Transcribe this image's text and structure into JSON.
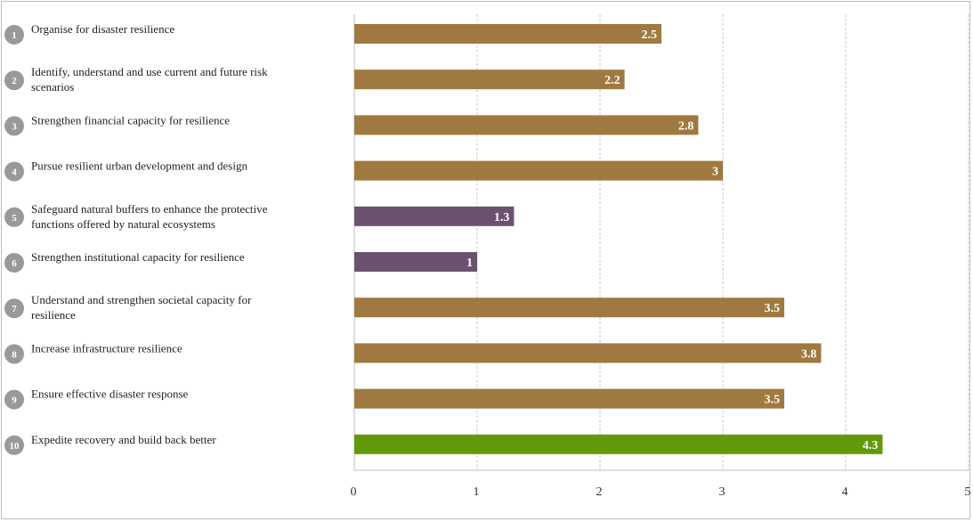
{
  "chart_data": {
    "type": "bar",
    "orientation": "horizontal",
    "categories": [
      {
        "number": "1",
        "label": "Organise for disaster resilience"
      },
      {
        "number": "2",
        "label": "Identify, understand and use current and future risk scenarios"
      },
      {
        "number": "3",
        "label": "Strengthen financial capacity for resilience"
      },
      {
        "number": "4",
        "label": "Pursue resilient urban development and design"
      },
      {
        "number": "5",
        "label": "Safeguard natural buffers to enhance the protective functions offered by natural ecosystems"
      },
      {
        "number": "6",
        "label": "Strengthen institutional capacity for resilience"
      },
      {
        "number": "7",
        "label": "Understand and strengthen societal capacity for resilience"
      },
      {
        "number": "8",
        "label": "Increase infrastructure resilience"
      },
      {
        "number": "9",
        "label": "Ensure effective disaster response"
      },
      {
        "number": "10",
        "label": "Expedite recovery and build back better"
      }
    ],
    "values": [
      2.5,
      2.2,
      2.8,
      3,
      1.3,
      1,
      3.5,
      3.8,
      3.5,
      4.3
    ],
    "value_labels": [
      "2.5",
      "2.2",
      "2.8",
      "3",
      "1.3",
      "1",
      "3.5",
      "3.8",
      "3.5",
      "4.3"
    ],
    "bar_colors": [
      "#a07940",
      "#a07940",
      "#a07940",
      "#a07940",
      "#6b5370",
      "#6b5370",
      "#a07940",
      "#a07940",
      "#a07940",
      "#62990a"
    ],
    "xlim": [
      0,
      5
    ],
    "xticks": [
      "0",
      "1",
      "2",
      "3",
      "4",
      "5"
    ],
    "grid": "vertical dashed",
    "title": "",
    "xlabel": "",
    "ylabel": ""
  },
  "colors": {
    "badge": "#999999",
    "grid": "#c8c8c8",
    "axis": "#bfbfbf"
  }
}
